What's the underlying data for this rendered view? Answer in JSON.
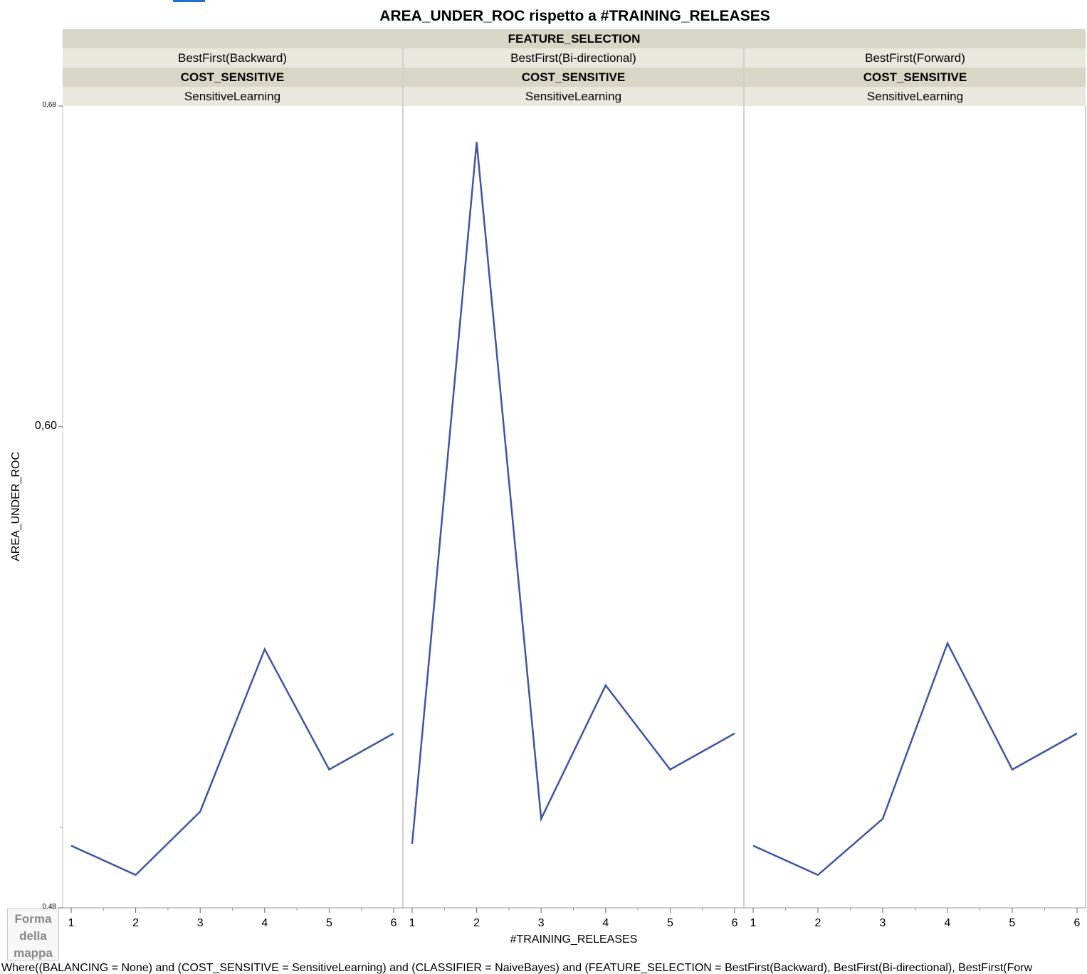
{
  "chart_data": {
    "type": "line",
    "title": "AREA_UNDER_ROC rispetto a #TRAINING_RELEASES",
    "xlabel": "#TRAINING_RELEASES",
    "ylabel": "AREA_UNDER_ROC",
    "ylim": [
      0.48,
      0.68
    ],
    "yticks": [
      {
        "value": 0.48,
        "label": "0,48"
      },
      {
        "value": 0.6,
        "label": "0,60"
      },
      {
        "value": 0.68,
        "label": "0,68"
      }
    ],
    "x": [
      1,
      2,
      3,
      4,
      5,
      6
    ],
    "grid": false,
    "line_color": "#3d55a3",
    "outer_header": "FEATURE_SELECTION",
    "inner_header": "COST_SENSITIVE",
    "panels": [
      {
        "feature_selection": "BestFirst(Backward)",
        "cost_sensitive": "SensitiveLearning",
        "values": [
          0.4955,
          0.4882,
          0.504,
          0.5445,
          0.5145,
          0.5235
        ]
      },
      {
        "feature_selection": "BestFirst(Bi-directional)",
        "cost_sensitive": "SensitiveLearning",
        "values": [
          0.496,
          0.671,
          0.5022,
          0.5355,
          0.5145,
          0.5235
        ]
      },
      {
        "feature_selection": "BestFirst(Forward)",
        "cost_sensitive": "SensitiveLearning",
        "values": [
          0.4955,
          0.4882,
          0.5022,
          0.546,
          0.5145,
          0.5235
        ]
      }
    ]
  },
  "legend_label": "Forma della mappa",
  "footnote": "Where((BALANCING = None) and (COST_SENSITIVE = SensitiveLearning) and (CLASSIFIER = NaiveBayes) and (FEATURE_SELECTION = BestFirst(Backward), BestFirst(Bi-directional), BestFirst(Forw"
}
